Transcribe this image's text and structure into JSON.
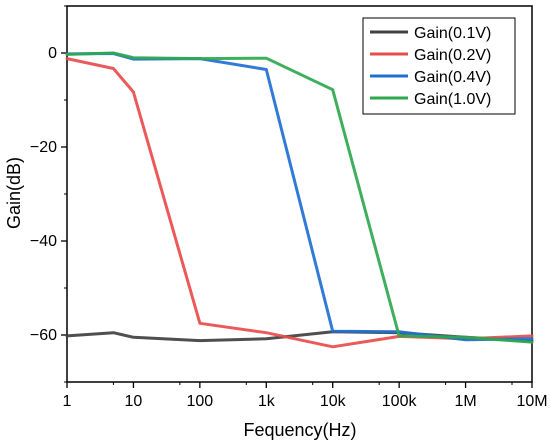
{
  "chart_data": {
    "type": "line",
    "xlabel": "Fequency(Hz)",
    "ylabel": "Gain(dB)",
    "xscale": "log",
    "xlim": [
      1,
      10000000
    ],
    "ylim": [
      -70,
      10
    ],
    "x_ticks": [
      1,
      10,
      100,
      1000,
      10000,
      100000,
      1000000,
      10000000
    ],
    "x_tick_labels": [
      "1",
      "10",
      "100",
      "1k",
      "10k",
      "100k",
      "1M",
      "10M"
    ],
    "y_ticks": [
      0,
      -20,
      -40,
      -60
    ],
    "y_tick_labels": [
      "0",
      "−20",
      "−40",
      "−60"
    ],
    "grid": false,
    "legend_position": "top-right",
    "series": [
      {
        "name": "Gain(0.1V)",
        "color": "#404040",
        "x": [
          1,
          5,
          10,
          100,
          1000,
          10000,
          100000,
          1000000,
          10000000
        ],
        "y": [
          -60.2,
          -59.5,
          -60.5,
          -61.2,
          -60.8,
          -59.3,
          -59.5,
          -60.5,
          -61.3
        ]
      },
      {
        "name": "Gain(0.2V)",
        "color": "#e84c4c",
        "x": [
          1,
          5,
          10,
          100,
          1000,
          10000,
          100000,
          1000000,
          10000000
        ],
        "y": [
          -1.2,
          -3.3,
          -8.3,
          -57.5,
          -59.5,
          -62.5,
          -60.3,
          -60.8,
          -60.2
        ]
      },
      {
        "name": "Gain(0.4V)",
        "color": "#1f6fd1",
        "x": [
          1,
          5,
          10,
          100,
          1000,
          10000,
          100000,
          1000000,
          10000000
        ],
        "y": [
          -0.2,
          -0.1,
          -1.3,
          -1.2,
          -3.5,
          -59.2,
          -59.3,
          -61.0,
          -60.8
        ]
      },
      {
        "name": "Gain(1.0V)",
        "color": "#2ea84f",
        "x": [
          1,
          5,
          10,
          100,
          1000,
          10000,
          100000,
          1000000,
          10000000
        ],
        "y": [
          -0.3,
          0.0,
          -1.0,
          -1.2,
          -1.1,
          -7.8,
          -60.2,
          -60.5,
          -61.5
        ]
      }
    ]
  }
}
